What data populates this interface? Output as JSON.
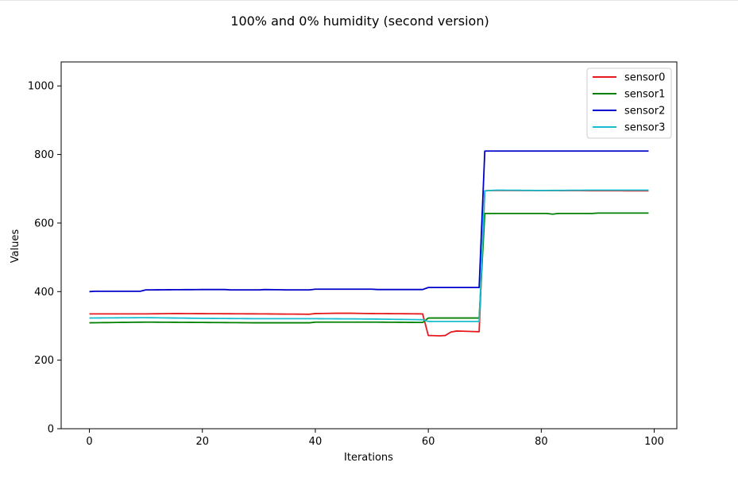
{
  "chart_data": {
    "type": "line",
    "title": "100% and 0% humidity (second version)",
    "xlabel": "Iterations",
    "ylabel": "Values",
    "xlim": [
      -5,
      104
    ],
    "ylim": [
      0,
      1070
    ],
    "xticks": [
      0,
      20,
      40,
      60,
      80,
      100
    ],
    "yticks": [
      0,
      200,
      400,
      600,
      800,
      1000
    ],
    "grid": false,
    "legend_position": "top-right",
    "series": [
      {
        "name": "sensor0",
        "color": "#e41a1c",
        "anchors": [
          [
            0,
            335
          ],
          [
            10,
            335
          ],
          [
            15,
            336
          ],
          [
            30,
            335
          ],
          [
            39,
            334
          ],
          [
            40,
            336
          ],
          [
            45,
            337
          ],
          [
            50,
            336
          ],
          [
            59,
            335
          ],
          [
            60,
            272
          ],
          [
            62,
            271
          ],
          [
            63,
            272
          ],
          [
            64,
            282
          ],
          [
            65,
            285
          ],
          [
            67,
            284
          ],
          [
            69,
            283
          ],
          [
            70,
            694
          ],
          [
            71,
            695
          ],
          [
            99,
            694
          ]
        ]
      },
      {
        "name": "sensor1",
        "color": "#008000",
        "anchors": [
          [
            0,
            309
          ],
          [
            5,
            310
          ],
          [
            10,
            311
          ],
          [
            20,
            310
          ],
          [
            30,
            309
          ],
          [
            39,
            309
          ],
          [
            40,
            311
          ],
          [
            50,
            311
          ],
          [
            59,
            310
          ],
          [
            60,
            323
          ],
          [
            69,
            323
          ],
          [
            70,
            628
          ],
          [
            81,
            628
          ],
          [
            82,
            626
          ],
          [
            83,
            628
          ],
          [
            89,
            628
          ],
          [
            90,
            629
          ],
          [
            99,
            629
          ]
        ]
      },
      {
        "name": "sensor2",
        "color": "#0000cc",
        "anchors": [
          [
            0,
            400
          ],
          [
            1,
            401
          ],
          [
            9,
            401
          ],
          [
            10,
            405
          ],
          [
            20,
            406
          ],
          [
            24,
            406
          ],
          [
            25,
            405
          ],
          [
            30,
            405
          ],
          [
            31,
            406
          ],
          [
            35,
            405
          ],
          [
            39,
            405
          ],
          [
            40,
            407
          ],
          [
            50,
            407
          ],
          [
            51,
            406
          ],
          [
            59,
            406
          ],
          [
            60,
            412
          ],
          [
            69,
            412
          ],
          [
            70,
            810
          ],
          [
            99,
            810
          ]
        ]
      },
      {
        "name": "sensor3",
        "color": "#17becf",
        "anchors": [
          [
            0,
            323
          ],
          [
            10,
            324
          ],
          [
            20,
            322
          ],
          [
            30,
            321
          ],
          [
            40,
            321
          ],
          [
            50,
            320
          ],
          [
            59,
            318
          ],
          [
            60,
            313
          ],
          [
            69,
            313
          ],
          [
            70,
            694
          ],
          [
            72,
            696
          ],
          [
            80,
            695
          ],
          [
            90,
            696
          ],
          [
            99,
            696
          ]
        ]
      }
    ]
  }
}
